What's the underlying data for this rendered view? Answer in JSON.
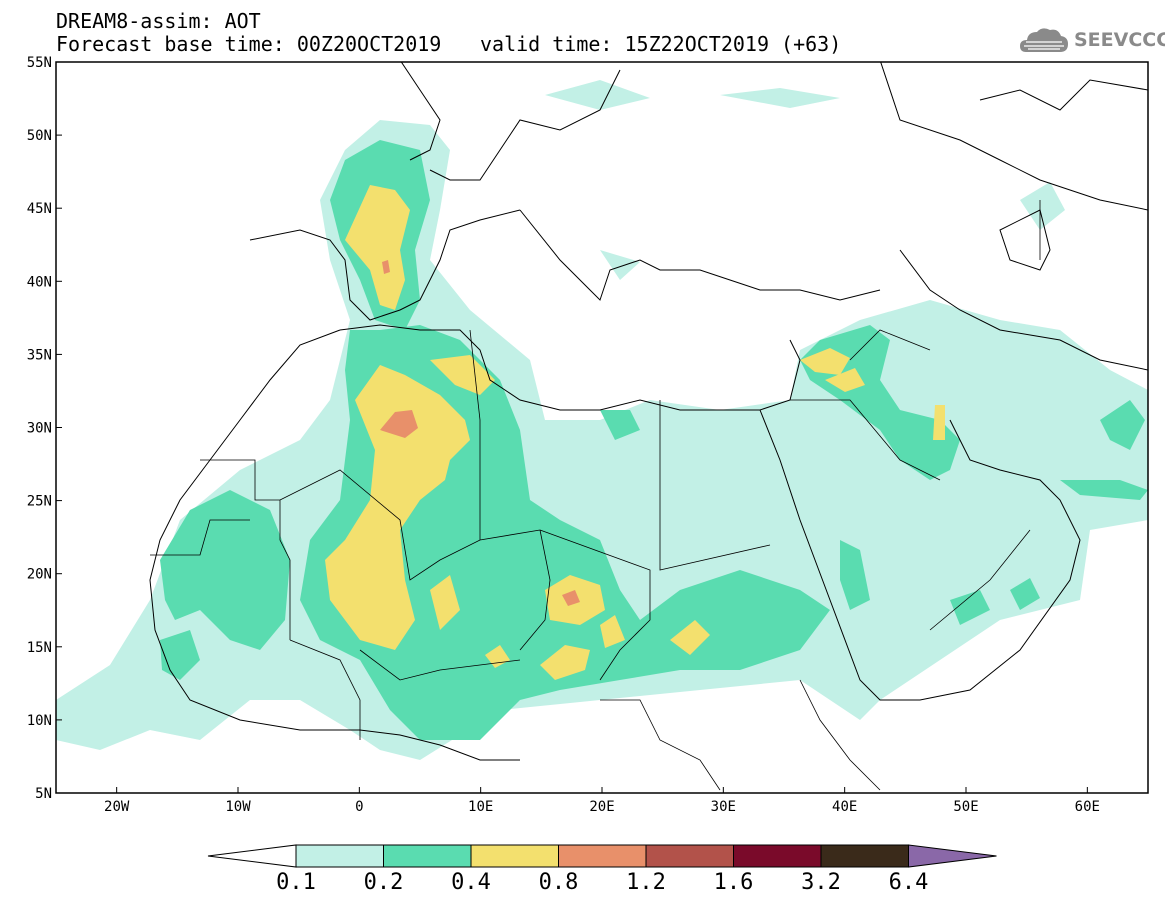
{
  "title": {
    "line1": "DREAM8-assim: AOT",
    "line2": "Forecast base time: 00Z20OCT2019",
    "valid": "valid time: 15Z22OCT2019 (+63)"
  },
  "logo": {
    "text": "SEEVCCC",
    "icon": "cloud-icon"
  },
  "map": {
    "lon_range": [
      -25,
      65
    ],
    "lat_range": [
      5,
      55
    ],
    "lat_labels": [
      "55N",
      "50N",
      "45N",
      "40N",
      "35N",
      "30N",
      "25N",
      "20N",
      "15N",
      "10N",
      "5N"
    ],
    "lon_labels": [
      "20W",
      "10W",
      "0",
      "10E",
      "20E",
      "30E",
      "40E",
      "50E",
      "60E"
    ]
  },
  "colorbar": {
    "levels": [
      "0.1",
      "0.2",
      "0.4",
      "0.8",
      "1.2",
      "1.6",
      "3.2",
      "6.4"
    ],
    "colors": [
      "#ffffff",
      "#c2f0e6",
      "#5adcb0",
      "#f3e06e",
      "#e8906a",
      "#b2524a",
      "#7a0a2a",
      "#3a2a1a",
      "#8a68a8"
    ]
  }
}
